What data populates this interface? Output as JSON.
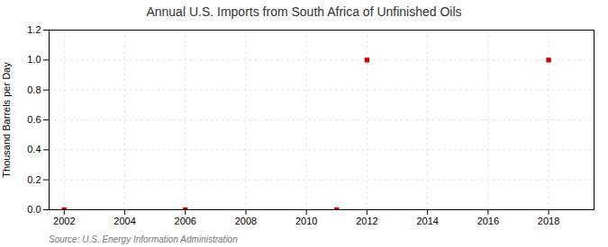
{
  "chart_data": {
    "type": "scatter",
    "title": "Annual U.S. Imports from South Africa of Unfinished Oils",
    "ylabel": "Thousand Barrels per Day",
    "source": "Source: U.S. Energy Information Administration",
    "x": [
      2002,
      2006,
      2011,
      2012,
      2018
    ],
    "values": [
      0.0,
      0.0,
      0.0,
      1.0,
      1.0
    ],
    "color": "#cc0000",
    "marker": "square",
    "xlim": [
      2001.5,
      2019.5
    ],
    "ylim": [
      0.0,
      1.2
    ],
    "xticks": [
      2002,
      2004,
      2006,
      2008,
      2010,
      2012,
      2014,
      2016,
      2018
    ],
    "yticks": [
      {
        "value": 0.0,
        "label": "0.0"
      },
      0.2,
      0.4,
      0.6,
      0.8,
      {
        "value": 1.0,
        "label": "1.0"
      },
      1.2
    ],
    "grid": true
  }
}
